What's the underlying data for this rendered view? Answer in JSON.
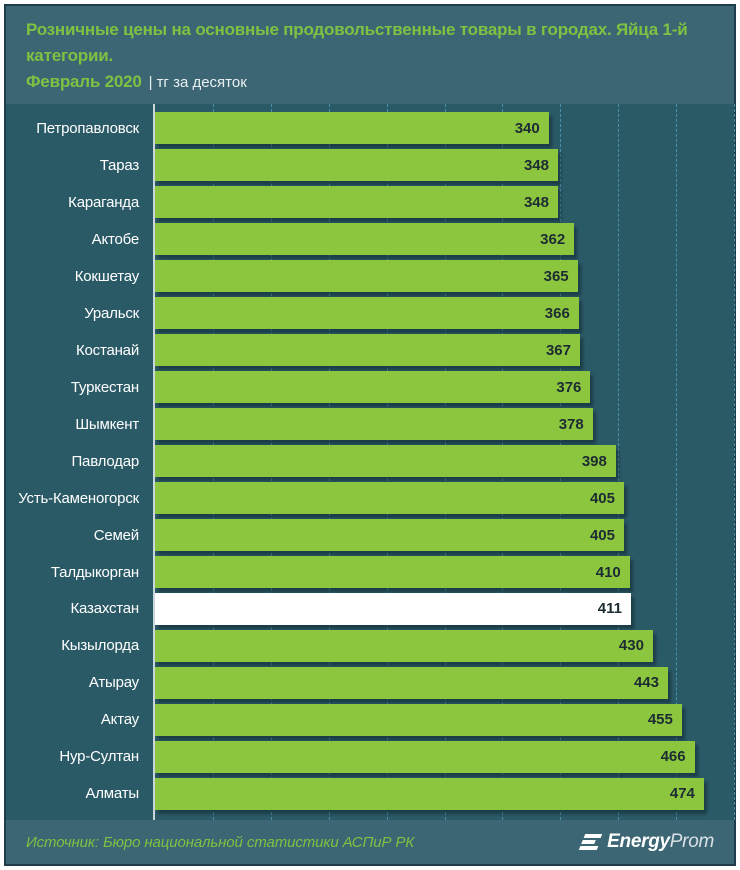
{
  "header": {
    "title": "Розничные цены на основные продовольственные товары в городах. Яйца 1-й категории.",
    "period": "Февраль 2020",
    "separator": "|",
    "unit": "тг за десяток"
  },
  "chart_data": {
    "type": "bar",
    "orientation": "horizontal",
    "title": "Розничные цены на основные продовольственные товары в городах. Яйца 1-й категории. Февраль 2020",
    "unit": "тг за десяток",
    "categories": [
      "Петропавловск",
      "Тараз",
      "Караганда",
      "Актобе",
      "Кокшетау",
      "Уральск",
      "Костанай",
      "Туркестан",
      "Шымкент",
      "Павлодар",
      "Усть-Каменогорск",
      "Семей",
      "Талдыкорган",
      "Казахстан",
      "Кызылорда",
      "Атырау",
      "Актау",
      "Нур-Султан",
      "Алматы"
    ],
    "values": [
      340,
      348,
      348,
      362,
      365,
      366,
      367,
      376,
      378,
      398,
      405,
      405,
      410,
      411,
      430,
      443,
      455,
      466,
      474
    ],
    "highlight_category": "Казахстан",
    "xlim": [
      0,
      500
    ],
    "gridline_step": 50,
    "grid": true,
    "legend": false,
    "value_labels": "inside-end"
  },
  "footer": {
    "source": "Источник: Бюро национальной статистики АСПиР РК",
    "logo_bold": "Energy",
    "logo_light": "Prom"
  },
  "colors": {
    "bar": "#8CC63E",
    "highlight_bar": "#FFFFFF",
    "title_accent": "#7DC242",
    "header_bg": "#3C6673",
    "plot_bg": "#2B5A67",
    "grid": "#4A90A8",
    "value_text": "#1D2B33",
    "label_text": "#FFFFFF",
    "card_border": "#1D3D4A"
  }
}
